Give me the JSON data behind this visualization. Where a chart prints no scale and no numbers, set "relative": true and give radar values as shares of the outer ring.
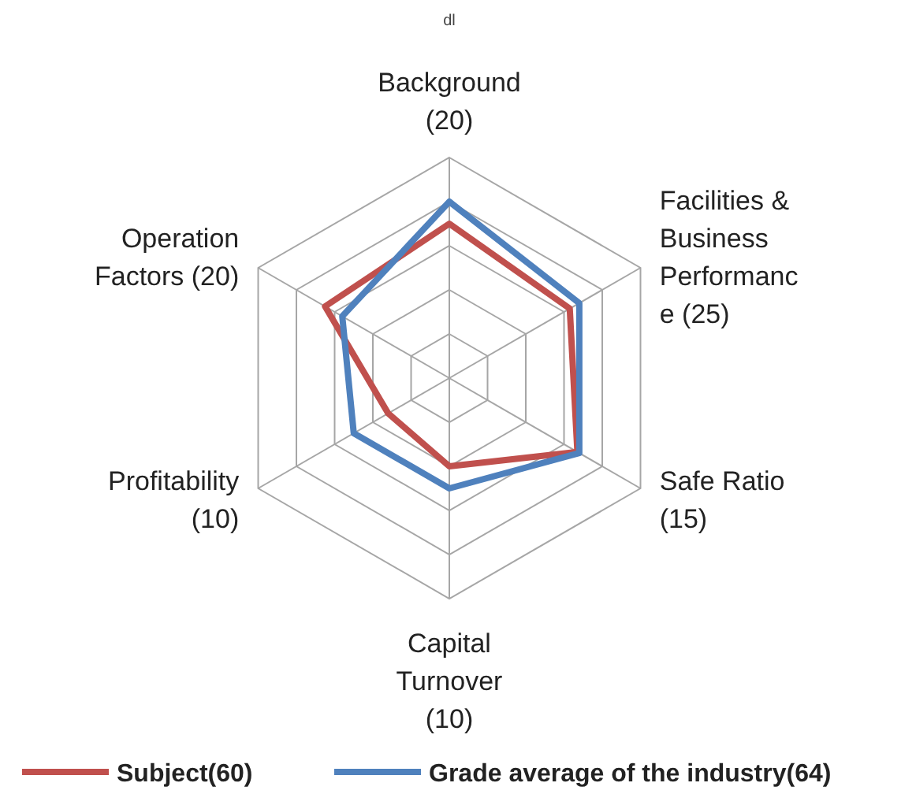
{
  "chart_data": {
    "type": "radar",
    "relative": true,
    "annotations": [
      "dl"
    ],
    "categories": [
      "Background\n(20)",
      "Facilities &\nBusiness\nPerformanc\ne (25)",
      "Safe Ratio\n(15)",
      "Capital\nTurnover\n(10)",
      "Profitability\n(10)",
      "Operation\nFactors (20)"
    ],
    "series": [
      {
        "name": "Subject(60)",
        "color": "#c0504d",
        "values": [
          0.7,
          0.63,
          0.67,
          0.4,
          0.32,
          0.65
        ]
      },
      {
        "name": "Grade average of the industry(64)",
        "color": "#4f81bd",
        "values": [
          0.8,
          0.68,
          0.68,
          0.5,
          0.5,
          0.56
        ]
      }
    ],
    "grid": true,
    "legend": "bottom",
    "marker": "none"
  }
}
